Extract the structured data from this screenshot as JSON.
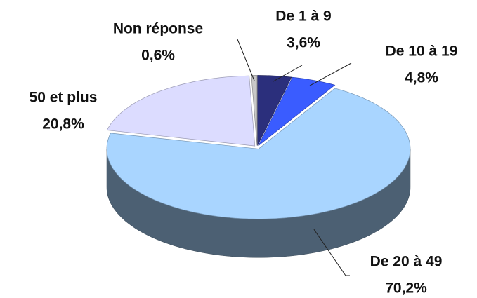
{
  "chart_data": {
    "type": "pie",
    "categories": [
      "De 1 à 9",
      "De 10 à 19",
      "De 20 à 49",
      "50 et plus",
      "Non réponse"
    ],
    "values": [
      3.6,
      4.8,
      70.2,
      20.8,
      0.6
    ],
    "value_labels": [
      "3,6%",
      "4,8%",
      "70,2%",
      "20,8%",
      "0,6%"
    ],
    "colors": [
      "#2b2f7c",
      "#3a5cff",
      "#a9d5ff",
      "#dcdcff",
      "#c8c8c8"
    ]
  }
}
